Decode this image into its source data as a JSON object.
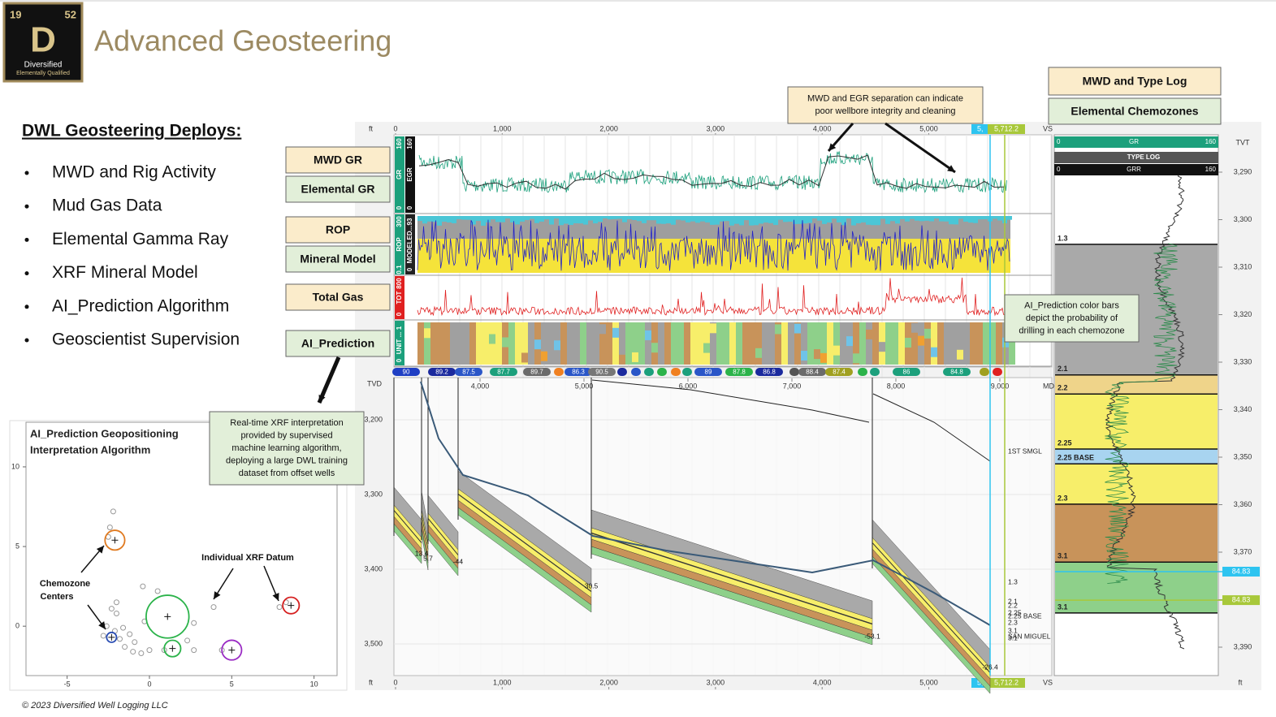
{
  "header": {
    "logo": {
      "number": "19",
      "mass": "52",
      "symbol": "D",
      "name": "Diversified",
      "tagline": "Elementally Qualified"
    },
    "title": "Advanced Geosteering"
  },
  "deploys": {
    "heading": "DWL Geosteering Deploys:",
    "items": [
      "MWD and Rig Activity",
      "Mud Gas Data",
      "Elemental Gamma Ray",
      "XRF Mineral Model",
      "AI_Prediction Algorithm",
      "Geoscientist Supervision"
    ]
  },
  "track_buttons": [
    "MWD GR",
    "Elemental GR",
    "ROP",
    "Mineral Model",
    "Total Gas",
    "AI_Prediction"
  ],
  "panel_buttons": [
    "MWD and Type Log",
    "Elemental Chemozones"
  ],
  "callouts": {
    "separation": [
      "MWD and EGR separation can indicate",
      "poor wellbore integrity and cleaning"
    ],
    "prediction_bars": [
      "AI_Prediction color bars",
      "depict the probability of",
      "drilling in each chemozone"
    ],
    "xrf": [
      "Real-time XRF interpretation",
      "provided by supervised",
      "machine learning algorithm,",
      "deploying a large DWL training",
      "dataset from offset wells"
    ]
  },
  "scatter": {
    "type": "scatter",
    "title": [
      "AI_Prediction Geopositioning",
      "Interpretation Algorithm"
    ],
    "annotations": {
      "centers": [
        "Chemozone",
        "Centers"
      ],
      "datum": "Individual XRF Datum"
    },
    "xlim": [
      -7.5,
      11.4
    ],
    "ylim": [
      -3.1,
      12.8
    ],
    "xticks": [
      -5,
      0,
      5,
      10
    ],
    "yticks": [
      0,
      5,
      10
    ],
    "x": [
      -2.2,
      -2.4,
      -2.5,
      -0.4,
      0.5,
      -2,
      -2.3,
      -2,
      -2.6,
      -2.1,
      -1.8,
      -1.5,
      -1,
      -0.5,
      0,
      -2.8,
      -1.2,
      -0.3,
      2.7,
      2.3,
      2.7,
      0.9,
      3.9,
      7.9,
      8.3,
      4.4,
      -1.6,
      -0.9
    ],
    "y": [
      7.2,
      6.2,
      5.6,
      2.5,
      2.2,
      1.5,
      1.1,
      0.8,
      0,
      -0.3,
      -0.8,
      -1.3,
      -1.6,
      -1.7,
      -1.5,
      -0.6,
      -0.5,
      0.3,
      0.2,
      -0.9,
      -1.5,
      -1.5,
      1.2,
      1.2,
      1.5,
      -1.5,
      -0.1,
      -1
    ],
    "centers": {
      "x": [
        -2.1,
        1.1,
        1.4,
        5,
        -2.3,
        8.6
      ],
      "y": [
        5.4,
        0.6,
        -1.4,
        -1.5,
        -0.7,
        1.3
      ],
      "size": [
        0.6,
        1.3,
        0.5,
        0.6,
        0.3,
        0.5
      ],
      "colors": [
        "#e07a20",
        "#2bb34a",
        "#2bb34a",
        "#9a2bc4",
        "#2a4db3",
        "#d62020"
      ]
    }
  },
  "vs_axis": {
    "unit": "ft",
    "label": "VS",
    "ticks": [
      0,
      {
        "value": 1000,
        "label": "1,000"
      },
      {
        "value": 2000,
        "label": "2,000"
      },
      {
        "value": 3000,
        "label": "3,000"
      },
      {
        "value": 4000,
        "label": "4,000"
      },
      {
        "value": 5000,
        "label": "5,000"
      }
    ],
    "prefix": "5,",
    "current": {
      "value": 5712.2,
      "label": "5,712.2"
    }
  },
  "tracks": [
    {
      "name": "GR",
      "min": 0,
      "max": 160,
      "name2": "EGR",
      "min2": 0,
      "max2": 160
    },
    {
      "name": "ROP",
      "min": 0.1,
      "max": 300,
      "name2": "MODELED...",
      "min2": 0,
      "max2": 93
    },
    {
      "name": "TOT",
      "min": 0,
      "max": 800
    },
    {
      "name": "UNIT ...",
      "min": 0,
      "max": 1
    }
  ],
  "prediction_bar": {
    "values": [
      90,
      89.2,
      87.5,
      87.7,
      89.7,
      86.3,
      90.5,
      89,
      87.8,
      86.8,
      88.4,
      87.4,
      86,
      84.8
    ],
    "colors": [
      "#1f3fc4",
      "#1b2a9e",
      "#2a56c8",
      "#1ca07c",
      "#6b6b6b",
      "#2a56c8",
      "#777777",
      "#2a56c8",
      "#2bb34a",
      "#1b2a9e",
      "#6b6b6b",
      "#a0a020",
      "#1ca07c",
      "#1ca07c"
    ]
  },
  "cross_section": {
    "tvd_label": "TVD",
    "md_label": "MD",
    "tvd_ticks": [
      {
        "value": 3200,
        "label": "3,200"
      },
      {
        "value": 3300,
        "label": "3,300"
      },
      {
        "value": 3400,
        "label": "3,400"
      },
      {
        "value": 3500,
        "label": "3,500"
      }
    ],
    "md_ticks": [
      {
        "value": 4000,
        "label": "4,000"
      },
      {
        "value": 5000,
        "label": "5,000"
      },
      {
        "value": 6000,
        "label": "6,000"
      },
      {
        "value": 7000,
        "label": "7,000"
      },
      {
        "value": 8000,
        "label": "8,000"
      },
      {
        "value": 9000,
        "label": "9,000"
      }
    ],
    "fault_throws": [
      13.4,
      5.7,
      -44,
      30.5,
      -53.1,
      -26.4
    ],
    "formations": [
      "1ST SMGL",
      "1.3",
      "2.1",
      "2.2",
      "2.25",
      "2.25 BASE",
      "2.3",
      "3.1",
      "3.1",
      "SAN MIGUEL"
    ]
  },
  "type_log": {
    "gr_label": "GR",
    "gr_min": 0,
    "gr_max": 160,
    "title": "TYPE LOG",
    "grr_label": "GRR",
    "grr_min": 0,
    "grr_max": 160,
    "tvt_label": "TVT",
    "unit": "ft",
    "tvt_ticks": [
      {
        "value": 3290,
        "label": "3,290"
      },
      {
        "value": 3300,
        "label": "3,300"
      },
      {
        "value": 3310,
        "label": "3,310"
      },
      {
        "value": 3320,
        "label": "3,320"
      },
      {
        "value": 3330,
        "label": "3,330"
      },
      {
        "value": 3340,
        "label": "3,340"
      },
      {
        "value": 3350,
        "label": "3,350"
      },
      {
        "value": 3360,
        "label": "3,360"
      },
      {
        "value": 3370,
        "label": "3,370"
      },
      {
        "value": 3380,
        "label": "3,380"
      },
      {
        "value": 3390,
        "label": "3,390"
      }
    ],
    "tops": [
      {
        "name": "1.3",
        "tvt": 3305.2
      },
      {
        "name": "2.1",
        "tvt": 3332.7
      },
      {
        "name": "2.2",
        "tvt": 3336.7
      },
      {
        "name": "2.25",
        "tvt": 3348.3
      },
      {
        "name": "2.25 BASE",
        "tvt": 3351.4
      },
      {
        "name": "2.3",
        "tvt": 3359.9
      },
      {
        "name": "3.1",
        "tvt": 3372.1
      },
      {
        "name": "3.1",
        "tvt": 3382.8
      }
    ],
    "band_colors": [
      "#a9a9a9",
      "#efd48a",
      "#f7ee6a",
      "#a8d4f0",
      "#f7ee6a",
      "#c8935a",
      "#8ed08a"
    ],
    "markers": [
      {
        "value": 84.83,
        "tvt": 3374.1,
        "color": "#2ec4f0"
      },
      {
        "value": 84.83,
        "tvt": 3380.1,
        "color": "#a8c83a"
      }
    ]
  },
  "footer": "© 2023 Diversified Well Logging LLC"
}
